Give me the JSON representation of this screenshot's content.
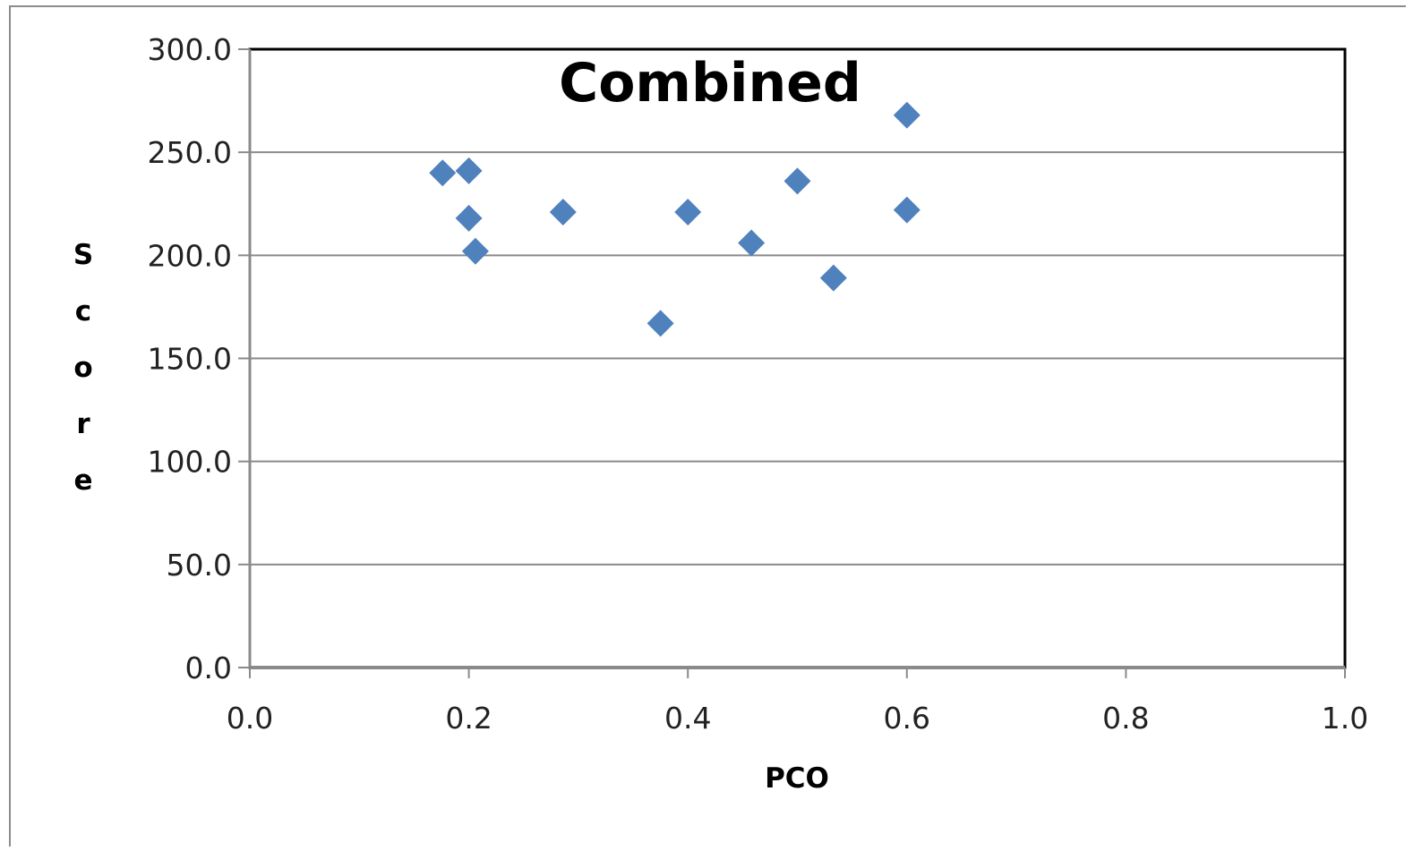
{
  "chart_data": {
    "type": "scatter",
    "title": "Combined",
    "xlabel": "PCO",
    "ylabel": "Score",
    "xlim": [
      0,
      1
    ],
    "ylim": [
      0,
      300
    ],
    "x_ticks": [
      "0.0",
      "0.2",
      "0.4",
      "0.6",
      "0.8",
      "1.0"
    ],
    "y_ticks": [
      "0.0",
      "50.0",
      "100.0",
      "150.0",
      "200.0",
      "250.0",
      "300.0"
    ],
    "grid": true,
    "marker": "diamond",
    "marker_color": "#4f81bd",
    "series": [
      {
        "points": [
          {
            "x": 0.176,
            "y": 240
          },
          {
            "x": 0.2,
            "y": 241
          },
          {
            "x": 0.2,
            "y": 218
          },
          {
            "x": 0.206,
            "y": 202
          },
          {
            "x": 0.286,
            "y": 221
          },
          {
            "x": 0.375,
            "y": 167
          },
          {
            "x": 0.4,
            "y": 221
          },
          {
            "x": 0.458,
            "y": 206
          },
          {
            "x": 0.5,
            "y": 236
          },
          {
            "x": 0.533,
            "y": 189
          },
          {
            "x": 0.6,
            "y": 268
          },
          {
            "x": 0.6,
            "y": 222
          }
        ]
      }
    ]
  }
}
